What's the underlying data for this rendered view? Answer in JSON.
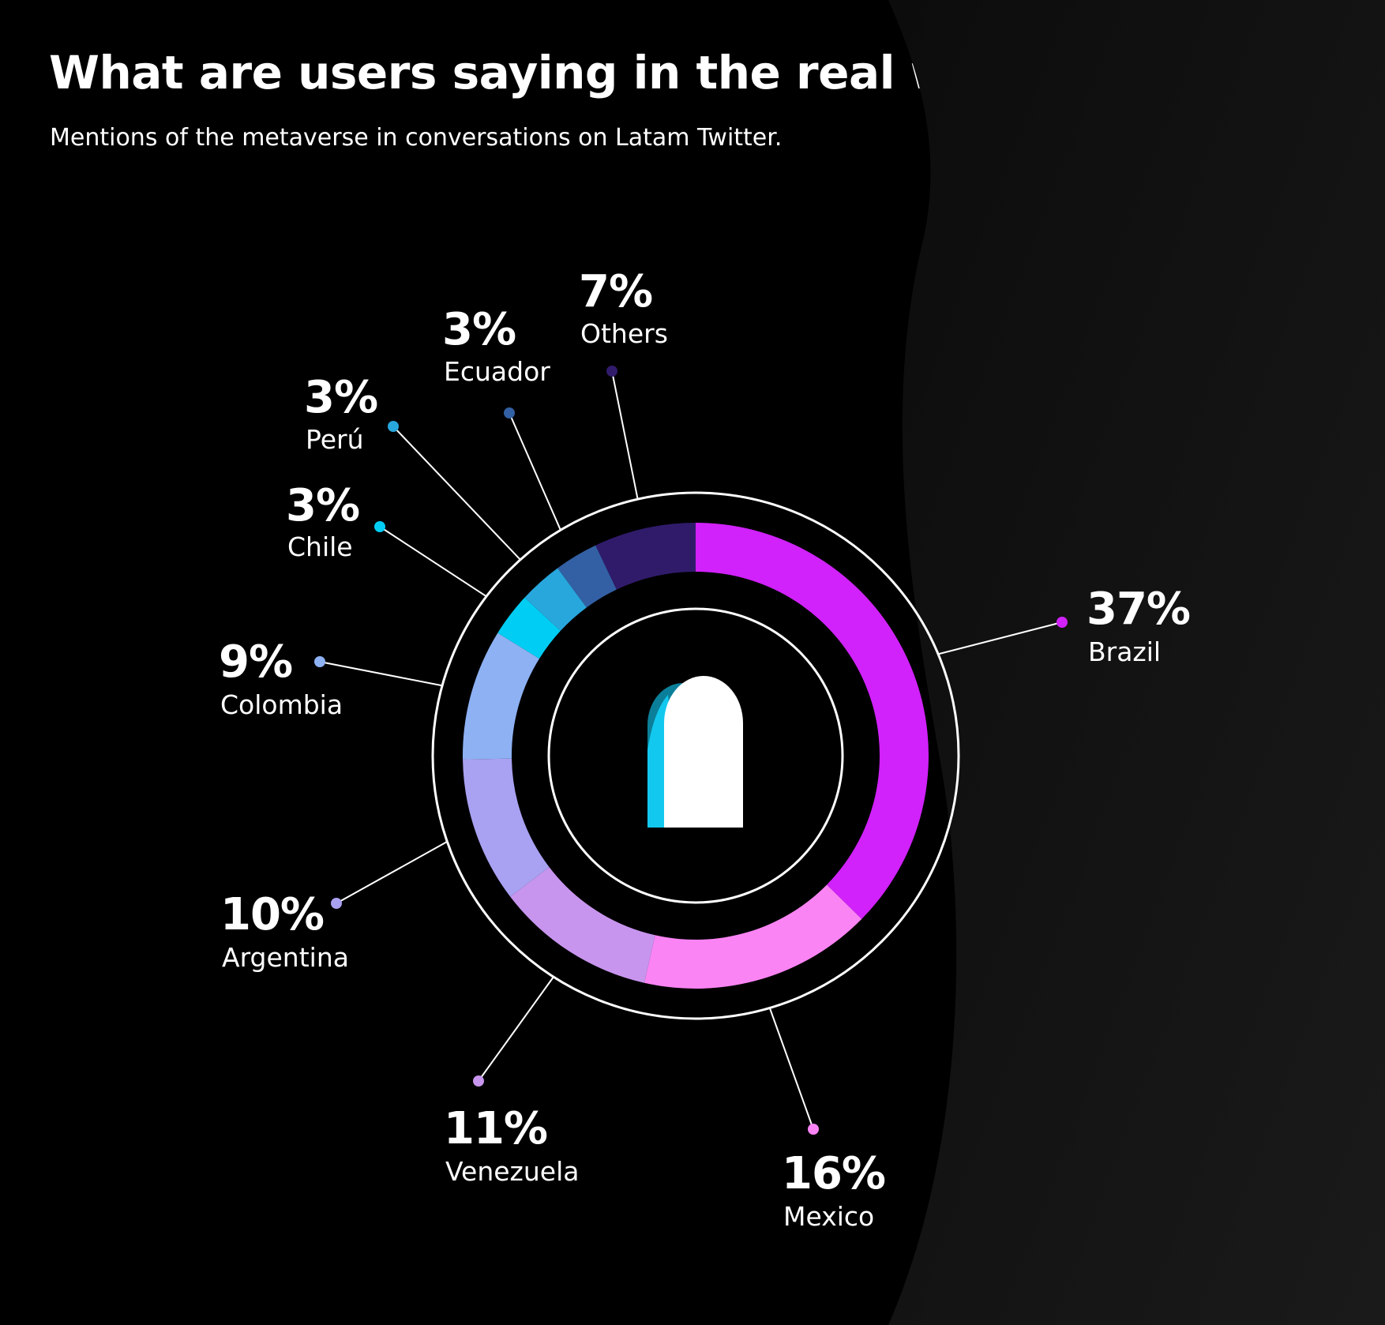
{
  "header": {
    "title": "What are users saying in the real world?",
    "subtitle": "Mentions of the metaverse in conversations on Latam Twitter."
  },
  "logo": {
    "icon": "arch-logo-icon",
    "colors": [
      "#ffffff",
      "#13c8ef",
      "#0b7f99"
    ]
  },
  "background": {
    "grid_top_color": "#14a4d4",
    "grid_bottom_color": "#d77ce6"
  },
  "chart_data": {
    "type": "pie",
    "title": "What are users saying in the real world?",
    "subtitle": "Mentions of the metaverse in conversations on Latam Twitter.",
    "categories": [
      "Brazil",
      "Mexico",
      "Venezuela",
      "Argentina",
      "Colombia",
      "Chile",
      "Perú",
      "Ecuador",
      "Others"
    ],
    "values": [
      37,
      16,
      11,
      10,
      9,
      3,
      3,
      3,
      7
    ],
    "labels": [
      "37%",
      "16%",
      "11%",
      "10%",
      "9%",
      "3%",
      "3%",
      "3%",
      "7%"
    ],
    "colors": [
      "#d122fb",
      "#fb84f4",
      "#c895ee",
      "#a9a1f2",
      "#8db1f3",
      "#00cdf3",
      "#28a7dc",
      "#3360a4",
      "#301b6b"
    ],
    "donut": true,
    "legend": "callout labels around ring"
  }
}
